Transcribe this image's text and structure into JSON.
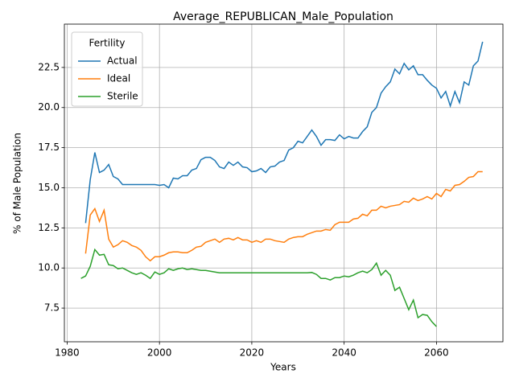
{
  "chart_data": {
    "type": "line",
    "title": "Average_REPUBLICAN_Male_Population",
    "x_label": "Years",
    "y_label": "% of Male Population",
    "legend_title": "Fertility",
    "legend": "upper left",
    "grid": true,
    "x": [
      1983,
      1984,
      1985,
      1986,
      1987,
      1988,
      1989,
      1990,
      1991,
      1992,
      1993,
      1994,
      1995,
      1996,
      1997,
      1998,
      1999,
      2000,
      2001,
      2002,
      2003,
      2004,
      2005,
      2006,
      2007,
      2008,
      2009,
      2010,
      2011,
      2012,
      2013,
      2014,
      2015,
      2016,
      2017,
      2018,
      2019,
      2020,
      2021,
      2022,
      2023,
      2024,
      2025,
      2026,
      2027,
      2028,
      2029,
      2030,
      2031,
      2032,
      2033,
      2034,
      2035,
      2036,
      2037,
      2038,
      2039,
      2040,
      2041,
      2042,
      2043,
      2044,
      2045,
      2046,
      2047,
      2048,
      2049,
      2050,
      2051,
      2052,
      2053,
      2054,
      2055,
      2056,
      2057,
      2058,
      2059,
      2060,
      2061,
      2062,
      2063,
      2064,
      2065,
      2066,
      2067,
      2068,
      2069,
      2070
    ],
    "series": [
      {
        "name": "Actual",
        "color": "#1f77b4",
        "values": [
          null,
          12.8,
          15.5,
          17.2,
          15.95,
          16.1,
          16.45,
          15.7,
          15.55,
          15.2,
          15.2,
          15.2,
          15.2,
          15.2,
          15.2,
          15.2,
          15.2,
          15.15,
          15.2,
          15.0,
          15.6,
          15.55,
          15.75,
          15.75,
          16.1,
          16.2,
          16.75,
          16.9,
          16.9,
          16.7,
          16.3,
          16.2,
          16.6,
          16.4,
          16.6,
          16.3,
          16.25,
          16.0,
          16.05,
          16.2,
          15.95,
          16.3,
          16.35,
          16.6,
          16.7,
          17.35,
          17.5,
          17.9,
          17.8,
          18.2,
          18.6,
          18.2,
          17.65,
          18.0,
          18.0,
          17.95,
          18.3,
          18.05,
          18.2,
          18.1,
          18.1,
          18.5,
          18.8,
          19.7,
          20.0,
          20.9,
          21.3,
          21.6,
          22.4,
          22.1,
          22.75,
          22.35,
          22.6,
          22.05,
          22.05,
          21.7,
          21.4,
          21.2,
          20.6,
          21.0,
          20.1,
          21.0,
          20.3,
          21.6,
          21.4,
          22.6,
          22.9,
          24.1
        ]
      },
      {
        "name": "Ideal",
        "color": "#ff7f0e",
        "values": [
          null,
          10.9,
          13.3,
          13.7,
          12.9,
          13.6,
          11.8,
          11.3,
          11.45,
          11.7,
          11.6,
          11.4,
          11.3,
          11.1,
          10.7,
          10.45,
          10.7,
          10.7,
          10.8,
          10.95,
          11.0,
          11.0,
          10.95,
          10.95,
          11.1,
          11.3,
          11.35,
          11.6,
          11.7,
          11.8,
          11.6,
          11.8,
          11.85,
          11.75,
          11.9,
          11.75,
          11.75,
          11.6,
          11.7,
          11.6,
          11.8,
          11.8,
          11.7,
          11.65,
          11.6,
          11.8,
          11.9,
          11.95,
          11.95,
          12.1,
          12.2,
          12.3,
          12.3,
          12.4,
          12.35,
          12.7,
          12.85,
          12.85,
          12.85,
          13.05,
          13.1,
          13.35,
          13.25,
          13.6,
          13.6,
          13.85,
          13.75,
          13.85,
          13.9,
          13.95,
          14.15,
          14.1,
          14.35,
          14.2,
          14.3,
          14.45,
          14.3,
          14.65,
          14.45,
          14.9,
          14.8,
          15.15,
          15.2,
          15.4,
          15.65,
          15.7,
          16.0,
          16.0
        ]
      },
      {
        "name": "Sterile",
        "color": "#2ca02c",
        "values": [
          9.35,
          9.5,
          10.1,
          11.15,
          10.8,
          10.85,
          10.2,
          10.15,
          9.95,
          10.0,
          9.85,
          9.7,
          9.6,
          9.7,
          9.55,
          9.35,
          9.75,
          9.6,
          9.7,
          9.95,
          9.85,
          9.95,
          10.0,
          9.9,
          9.95,
          9.9,
          9.85,
          9.85,
          9.8,
          9.75,
          9.7,
          9.7,
          9.7,
          9.7,
          9.7,
          9.7,
          9.7,
          9.7,
          9.7,
          9.7,
          9.7,
          9.7,
          9.7,
          9.7,
          9.7,
          9.7,
          9.7,
          9.7,
          9.7,
          9.7,
          9.72,
          9.6,
          9.35,
          9.35,
          9.25,
          9.4,
          9.4,
          9.5,
          9.45,
          9.55,
          9.7,
          9.8,
          9.7,
          9.9,
          10.3,
          9.55,
          9.85,
          9.55,
          8.6,
          8.8,
          8.1,
          7.4,
          8.0,
          6.9,
          7.1,
          7.05,
          6.65,
          6.35,
          null,
          null,
          null,
          null,
          null,
          null,
          null,
          null,
          null,
          null
        ]
      }
    ],
    "xlim": [
      1979.4,
      2074.4
    ],
    "xticks": [
      1980,
      2000,
      2020,
      2040,
      2060
    ],
    "ylim": [
      5.4,
      25.2
    ],
    "yticks": [
      7.5,
      {
        "value": 10,
        "label": "10.0"
      },
      12.5,
      {
        "value": 15,
        "label": "15.0"
      },
      17.5,
      {
        "value": 20,
        "label": "20.0"
      },
      22.5
    ]
  }
}
